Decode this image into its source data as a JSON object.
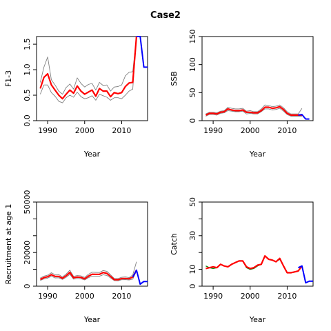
{
  "title": "Case2",
  "colors": {
    "estimate": "#ff0000",
    "projection": "#0000ff",
    "ci": "#808080",
    "observed": "#008000"
  },
  "chart_data": [
    {
      "type": "line",
      "ylabel": "F1-3",
      "xlabel": "Year",
      "xlim": [
        1987,
        2017
      ],
      "ylim": [
        0,
        1.65
      ],
      "xticks": [
        1990,
        2000,
        2010
      ],
      "yticks": [
        0.0,
        0.5,
        1.0,
        1.5
      ],
      "xtick_labels": [
        "1990",
        "2000",
        "2010"
      ],
      "ytick_labels": [
        "0.0",
        "0.5",
        "1.0",
        "1.5"
      ],
      "series": [
        {
          "role": "upper",
          "color": "ci",
          "x": [
            1988,
            1989,
            1990,
            1991,
            1992,
            1993,
            1994,
            1995,
            1996,
            1997,
            1998,
            1999,
            2000,
            2001,
            2002,
            2003,
            2004,
            2005,
            2006,
            2007,
            2008,
            2009,
            2010,
            2011,
            2012,
            2013,
            2014
          ],
          "y": [
            0.75,
            1.05,
            1.25,
            0.8,
            0.7,
            0.58,
            0.52,
            0.65,
            0.72,
            0.62,
            0.84,
            0.73,
            0.66,
            0.71,
            0.73,
            0.6,
            0.75,
            0.69,
            0.7,
            0.58,
            0.66,
            0.67,
            0.7,
            0.88,
            0.95,
            0.96,
            1.65
          ]
        },
        {
          "role": "lower",
          "color": "ci",
          "x": [
            1988,
            1989,
            1990,
            1991,
            1992,
            1993,
            1994,
            1995,
            1996,
            1997,
            1998,
            1999,
            2000,
            2001,
            2002,
            2003,
            2004,
            2005,
            2006,
            2007,
            2008,
            2009,
            2010,
            2011,
            2012,
            2013,
            2014
          ],
          "y": [
            0.52,
            0.7,
            0.7,
            0.55,
            0.48,
            0.38,
            0.35,
            0.45,
            0.5,
            0.46,
            0.56,
            0.47,
            0.43,
            0.45,
            0.49,
            0.4,
            0.52,
            0.49,
            0.46,
            0.4,
            0.45,
            0.45,
            0.43,
            0.5,
            0.58,
            0.62,
            1.65
          ]
        },
        {
          "role": "estimate",
          "color": "estimate",
          "x": [
            1988,
            1989,
            1990,
            1991,
            1992,
            1993,
            1994,
            1995,
            1996,
            1997,
            1998,
            1999,
            2000,
            2001,
            2002,
            2003,
            2004,
            2005,
            2006,
            2007,
            2008,
            2009,
            2010,
            2011,
            2012,
            2013,
            2014
          ],
          "y": [
            0.63,
            0.85,
            0.92,
            0.7,
            0.6,
            0.5,
            0.43,
            0.52,
            0.6,
            0.54,
            0.68,
            0.58,
            0.52,
            0.56,
            0.6,
            0.48,
            0.63,
            0.58,
            0.58,
            0.47,
            0.55,
            0.53,
            0.55,
            0.67,
            0.74,
            0.75,
            1.65
          ]
        },
        {
          "role": "projection",
          "color": "projection",
          "x": [
            2014,
            2015,
            2016,
            2017
          ],
          "y": [
            1.65,
            1.65,
            1.05,
            1.05
          ]
        }
      ]
    },
    {
      "type": "line",
      "ylabel": "SSB",
      "xlabel": "Year",
      "xlim": [
        1987,
        2017
      ],
      "ylim": [
        0,
        150
      ],
      "xticks": [
        1990,
        2000,
        2010
      ],
      "yticks": [
        0,
        50,
        100,
        150
      ],
      "xtick_labels": [
        "1990",
        "2000",
        "2010"
      ],
      "ytick_labels": [
        "0",
        "50",
        "100",
        "150"
      ],
      "series": [
        {
          "role": "upper",
          "color": "ci",
          "x": [
            1988,
            1989,
            1990,
            1991,
            1992,
            1993,
            1994,
            1995,
            1996,
            1997,
            1998,
            1999,
            2000,
            2001,
            2002,
            2003,
            2004,
            2005,
            2006,
            2007,
            2008,
            2009,
            2010,
            2011,
            2012,
            2013,
            2014
          ],
          "y": [
            12,
            15,
            15,
            14,
            17,
            18,
            24,
            22,
            21,
            21,
            22,
            17,
            18,
            16,
            16,
            21,
            28,
            27,
            25,
            26,
            28,
            23,
            16,
            12,
            12,
            12,
            22
          ]
        },
        {
          "role": "lower",
          "color": "ci",
          "x": [
            1988,
            1989,
            1990,
            1991,
            1992,
            1993,
            1994,
            1995,
            1996,
            1997,
            1998,
            1999,
            2000,
            2001,
            2002,
            2003,
            2004,
            2005,
            2006,
            2007,
            2008,
            2009,
            2010,
            2011,
            2012,
            2013,
            2014
          ],
          "y": [
            8,
            11,
            11,
            10,
            13,
            14,
            18,
            17,
            16,
            16,
            17,
            12,
            13,
            12,
            12,
            16,
            21,
            21,
            19,
            20,
            22,
            17,
            11,
            8,
            8,
            8,
            8
          ]
        },
        {
          "role": "estimate",
          "color": "estimate",
          "x": [
            1988,
            1989,
            1990,
            1991,
            1992,
            1993,
            1994,
            1995,
            1996,
            1997,
            1998,
            1999,
            2000,
            2001,
            2002,
            2003,
            2004,
            2005,
            2006,
            2007,
            2008,
            2009,
            2010,
            2011,
            2012,
            2013,
            2014
          ],
          "y": [
            10,
            13,
            13,
            12,
            15,
            16,
            21,
            19,
            18,
            18,
            19,
            15,
            15,
            14,
            14,
            18,
            24,
            24,
            22,
            23,
            25,
            20,
            13,
            10,
            10,
            10,
            10
          ]
        },
        {
          "role": "projection",
          "color": "projection",
          "x": [
            2013,
            2014,
            2015,
            2016
          ],
          "y": [
            10,
            11,
            3,
            3
          ]
        }
      ]
    },
    {
      "type": "line",
      "ylabel": "Recruitment at age 1",
      "xlabel": "Year",
      "xlim": [
        1987,
        2017
      ],
      "ylim": [
        0,
        50000
      ],
      "xticks": [
        1990,
        2000,
        2010
      ],
      "yticks": [
        0,
        10000,
        20000,
        30000,
        40000,
        50000
      ],
      "xtick_labels": [
        "1990",
        "2000",
        "2010"
      ],
      "ytick_labels": [
        "0",
        "",
        "20000",
        "",
        "",
        "50000"
      ],
      "series": [
        {
          "role": "upper",
          "color": "ci",
          "x": [
            1988,
            1989,
            1990,
            1991,
            1992,
            1993,
            1994,
            1995,
            1996,
            1997,
            1998,
            1999,
            2000,
            2001,
            2002,
            2003,
            2004,
            2005,
            2006,
            2007,
            2008,
            2009,
            2010,
            2011,
            2012,
            2013,
            2014
          ],
          "y": [
            4800,
            6000,
            6500,
            8000,
            6800,
            6900,
            5500,
            7200,
            9500,
            5800,
            6300,
            6100,
            5200,
            7000,
            8300,
            8200,
            8100,
            9300,
            8800,
            6800,
            4600,
            4500,
            5300,
            5500,
            5100,
            6700,
            14500
          ]
        },
        {
          "role": "lower",
          "color": "ci",
          "x": [
            1988,
            1989,
            1990,
            1991,
            1992,
            1993,
            1994,
            1995,
            1996,
            1997,
            1998,
            1999,
            2000,
            2001,
            2002,
            2003,
            2004,
            2005,
            2006,
            2007,
            2008,
            2009,
            2010,
            2011,
            2012,
            2013,
            2014
          ],
          "y": [
            3400,
            4300,
            4800,
            5900,
            4900,
            5000,
            4000,
            5300,
            7000,
            4200,
            4600,
            4400,
            3700,
            5000,
            6000,
            6000,
            5900,
            6800,
            6400,
            4900,
            3300,
            3200,
            3800,
            3900,
            3700,
            4200,
            9000
          ]
        },
        {
          "role": "estimate",
          "color": "estimate",
          "x": [
            1988,
            1989,
            1990,
            1991,
            1992,
            1993,
            1994,
            1995,
            1996,
            1997,
            1998,
            1999,
            2000,
            2001,
            2002,
            2003,
            2004,
            2005,
            2006,
            2007,
            2008,
            2009,
            2010,
            2011,
            2012,
            2013,
            2014
          ],
          "y": [
            4000,
            5100,
            5600,
            6800,
            5800,
            5800,
            4700,
            6200,
            8200,
            5000,
            5400,
            5200,
            4400,
            5900,
            7100,
            7000,
            7000,
            8100,
            7600,
            5800,
            3900,
            3800,
            4500,
            4600,
            4400,
            5400,
            9500
          ]
        },
        {
          "role": "projection",
          "color": "projection",
          "x": [
            2013,
            2014,
            2015,
            2016,
            2017
          ],
          "y": [
            5400,
            9500,
            1200,
            2800,
            2800
          ]
        }
      ]
    },
    {
      "type": "line",
      "ylabel": "Catch",
      "xlabel": "Year",
      "xlim": [
        1987,
        2017
      ],
      "ylim": [
        0,
        50
      ],
      "xticks": [
        1990,
        2000,
        2010
      ],
      "yticks": [
        0,
        10,
        20,
        30,
        40,
        50
      ],
      "xtick_labels": [
        "1990",
        "2000",
        "2010"
      ],
      "ytick_labels": [
        "0",
        "10",
        "",
        "30",
        "",
        "50"
      ],
      "series": [
        {
          "role": "observed",
          "color": "observed",
          "x": [
            1988,
            1989,
            1990,
            1991,
            1992,
            1993,
            1994,
            1995,
            1996,
            1997,
            1998,
            1999,
            2000,
            2001,
            2002,
            2003,
            2004,
            2005,
            2006,
            2007,
            2008,
            2009,
            2010,
            2011,
            2012,
            2013,
            2014
          ],
          "y": [
            12,
            11,
            10.5,
            11,
            13,
            12,
            11.5,
            13,
            14,
            15,
            15,
            11,
            10,
            10.5,
            12,
            13,
            18,
            16,
            15.5,
            14.5,
            16,
            12,
            8,
            8,
            8.5,
            9,
            12
          ]
        },
        {
          "role": "estimate",
          "color": "estimate",
          "x": [
            1988,
            1989,
            1990,
            1991,
            1992,
            1993,
            1994,
            1995,
            1996,
            1997,
            1998,
            1999,
            2000,
            2001,
            2002,
            2003,
            2004,
            2005,
            2006,
            2007,
            2008,
            2009,
            2010,
            2011,
            2012,
            2013,
            2014
          ],
          "y": [
            10.5,
            11,
            11.5,
            11,
            13,
            12,
            11.5,
            13,
            14,
            15,
            15,
            11.5,
            10.5,
            11,
            12.5,
            13,
            18,
            16,
            15.5,
            14.5,
            16.5,
            12,
            8,
            8,
            8.5,
            9,
            12
          ]
        },
        {
          "role": "projection",
          "color": "projection",
          "x": [
            2013,
            2014,
            2015,
            2016,
            2017
          ],
          "y": [
            11,
            12,
            2,
            3,
            3
          ]
        }
      ]
    }
  ]
}
